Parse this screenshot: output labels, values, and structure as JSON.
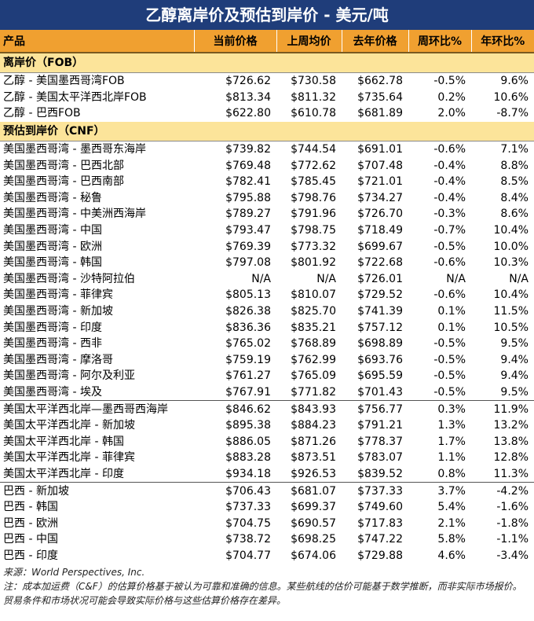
{
  "title": "乙醇离岸价及预估到岸价 - 美元/吨",
  "headers": [
    "产品",
    "当前价格",
    "上周均价",
    "去年价格",
    "周环比%",
    "年环比%"
  ],
  "sections": [
    {
      "label": "离岸价（FOB）",
      "groups": [
        [
          [
            "乙醇 - 美国墨西哥湾FOB",
            "$726.62",
            "$730.58",
            "$662.78",
            "-0.5%",
            "9.6%"
          ],
          [
            "乙醇 - 美国太平洋西北岸FOB",
            "$813.34",
            "$811.32",
            "$735.64",
            "0.2%",
            "10.6%"
          ],
          [
            "乙醇 - 巴西FOB",
            "$622.80",
            "$610.78",
            "$681.89",
            "2.0%",
            "-8.7%"
          ]
        ]
      ]
    },
    {
      "label": "预估到岸价（CNF）",
      "groups": [
        [
          [
            "美国墨西哥湾 - 墨西哥东海岸",
            "$739.82",
            "$744.54",
            "$691.01",
            "-0.6%",
            "7.1%"
          ],
          [
            "美国墨西哥湾 - 巴西北部",
            "$769.48",
            "$772.62",
            "$707.48",
            "-0.4%",
            "8.8%"
          ],
          [
            "美国墨西哥湾 - 巴西南部",
            "$782.41",
            "$785.45",
            "$721.01",
            "-0.4%",
            "8.5%"
          ],
          [
            "美国墨西哥湾 - 秘鲁",
            "$795.88",
            "$798.76",
            "$734.27",
            "-0.4%",
            "8.4%"
          ],
          [
            "美国墨西哥湾 - 中美洲西海岸",
            "$789.27",
            "$791.96",
            "$726.70",
            "-0.3%",
            "8.6%"
          ],
          [
            "美国墨西哥湾 - 中国",
            "$793.47",
            "$798.75",
            "$718.49",
            "-0.7%",
            "10.4%"
          ],
          [
            "美国墨西哥湾 - 欧洲",
            "$769.39",
            "$773.32",
            "$699.67",
            "-0.5%",
            "10.0%"
          ],
          [
            "美国墨西哥湾 - 韩国",
            "$797.08",
            "$801.92",
            "$722.68",
            "-0.6%",
            "10.3%"
          ],
          [
            "美国墨西哥湾 - 沙特阿拉伯",
            "N/A",
            "N/A",
            "$726.01",
            "N/A",
            "N/A"
          ],
          [
            "美国墨西哥湾 - 菲律宾",
            "$805.13",
            "$810.07",
            "$729.52",
            "-0.6%",
            "10.4%"
          ],
          [
            "美国墨西哥湾 - 新加坡",
            "$826.38",
            "$825.70",
            "$741.39",
            "0.1%",
            "11.5%"
          ],
          [
            "美国墨西哥湾 - 印度",
            "$836.36",
            "$835.21",
            "$757.12",
            "0.1%",
            "10.5%"
          ],
          [
            "美国墨西哥湾 - 西非",
            "$765.02",
            "$768.89",
            "$698.89",
            "-0.5%",
            "9.5%"
          ],
          [
            "美国墨西哥湾 - 摩洛哥",
            "$759.19",
            "$762.99",
            "$693.76",
            "-0.5%",
            "9.4%"
          ],
          [
            "美国墨西哥湾 - 阿尔及利亚",
            "$761.27",
            "$765.09",
            "$695.59",
            "-0.5%",
            "9.4%"
          ],
          [
            "美国墨西哥湾 - 埃及",
            "$767.91",
            "$771.82",
            "$701.43",
            "-0.5%",
            "9.5%"
          ]
        ],
        [
          [
            "美国太平洋西北岸—墨西哥西海岸",
            "$846.62",
            "$843.93",
            "$756.77",
            "0.3%",
            "11.9%"
          ],
          [
            "美国太平洋西北岸 - 新加坡",
            "$895.38",
            "$884.23",
            "$791.21",
            "1.3%",
            "13.2%"
          ],
          [
            "美国太平洋西北岸 - 韩国",
            "$886.05",
            "$871.26",
            "$778.37",
            "1.7%",
            "13.8%"
          ],
          [
            "美国太平洋西北岸 - 菲律宾",
            "$883.28",
            "$873.51",
            "$783.07",
            "1.1%",
            "12.8%"
          ],
          [
            "美国太平洋西北岸 - 印度",
            "$934.18",
            "$926.53",
            "$839.52",
            "0.8%",
            "11.3%"
          ]
        ],
        [
          [
            "巴西 - 新加坡",
            "$706.43",
            "$681.07",
            "$737.33",
            "3.7%",
            "-4.2%"
          ],
          [
            "巴西 - 韩国",
            "$737.33",
            "$699.37",
            "$749.60",
            "5.4%",
            "-1.6%"
          ],
          [
            "巴西 - 欧洲",
            "$704.75",
            "$690.57",
            "$717.83",
            "2.1%",
            "-1.8%"
          ],
          [
            "巴西 - 中国",
            "$738.72",
            "$698.25",
            "$747.22",
            "5.8%",
            "-1.1%"
          ],
          [
            "巴西 - 印度",
            "$704.77",
            "$674.06",
            "$729.88",
            "4.6%",
            "-3.4%"
          ]
        ]
      ]
    }
  ],
  "footer": {
    "source": "来源：World Perspectives, Inc.",
    "note": "注：成本加运费（C&F）的估算价格基于被认为可靠和准确的信息。某些航线的估价可能基于数学推断，而非实际市场报价。贸易条件和市场状况可能会导致实际价格与这些估算价格存在差异。"
  },
  "colors": {
    "title_bg": "#1f3d7a",
    "header_bg": "#f0a030",
    "section_bg": "#fce49a"
  }
}
